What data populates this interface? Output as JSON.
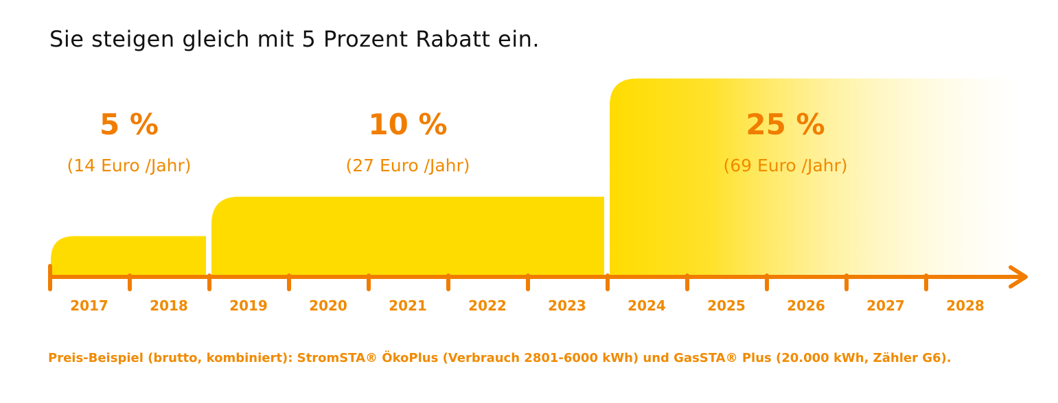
{
  "headline": "Sie steigen gleich mit 5 Prozent Rabatt ein.",
  "footnote": "Preis-Beispiel (brutto, kombiniert): StromSTA® ÖkoPlus (Verbrauch 2801-6000 kWh) und GasSTA® Plus (20.000 kWh, Zähler G6).",
  "colors": {
    "accent": "#f07d00",
    "label": "#f08a00",
    "bar": "#ffdc00",
    "headline": "#111111"
  },
  "chart_data": {
    "type": "bar",
    "title": "Sie steigen gleich mit 5 Prozent Rabatt ein.",
    "x": [
      "2017",
      "2018",
      "2019",
      "2020",
      "2021",
      "2022",
      "2023",
      "2024",
      "2025",
      "2026",
      "2027",
      "2028"
    ],
    "ylim": [
      0,
      25
    ],
    "segments": [
      {
        "start_year": "2017",
        "end_year": "2018",
        "value": 5,
        "label": "5 %",
        "euro_label": "(14 Euro /Jahr)"
      },
      {
        "start_year": "2019",
        "end_year": "2023",
        "value": 10,
        "label": "10 %",
        "euro_label": "(27 Euro /Jahr)"
      },
      {
        "start_year": "2024",
        "end_year": "2028",
        "value": 25,
        "label": "25 %",
        "euro_label": "(69 Euro /Jahr)",
        "fading": true
      }
    ],
    "grid": false,
    "legend": "none"
  }
}
